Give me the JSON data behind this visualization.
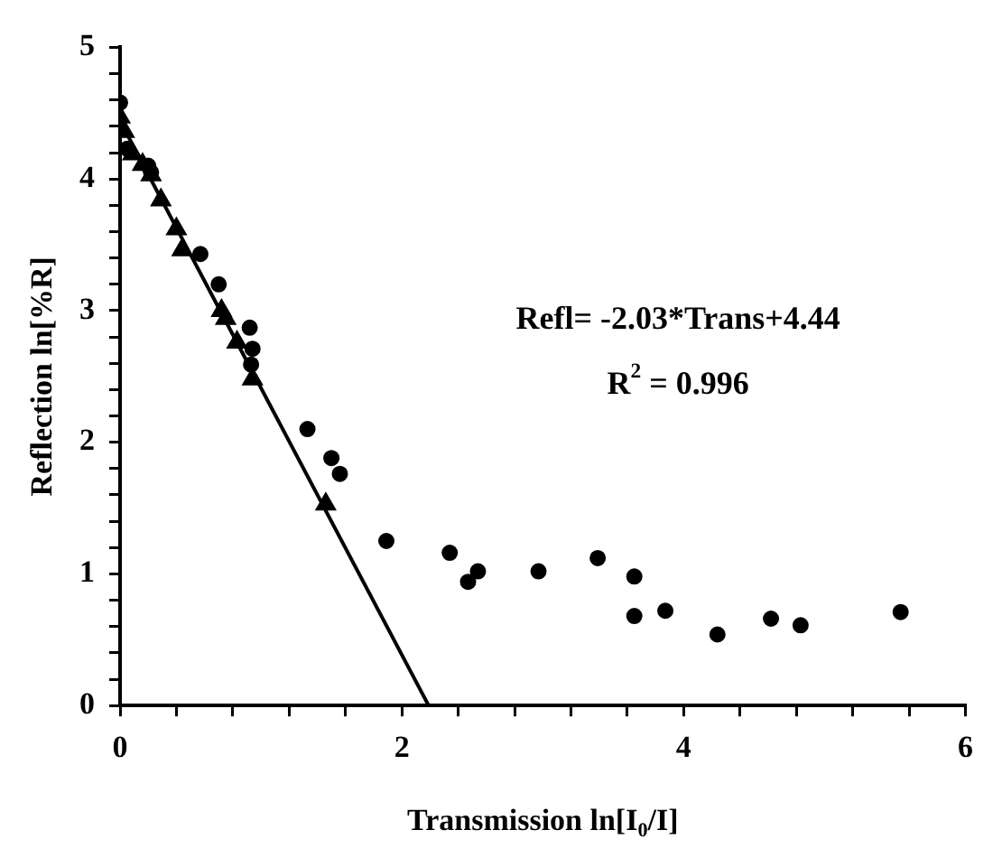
{
  "chart_data": {
    "type": "scatter",
    "xlabel": "Transmission ln[I$_{0}$/I]",
    "ylabel": "Reflection ln[%R]",
    "xlim": [
      0,
      6
    ],
    "ylim": [
      0,
      5
    ],
    "xticks": [
      0,
      {
        "value": 0.4,
        "label": null
      },
      {
        "value": 0.8,
        "label": null
      },
      {
        "value": 1.2,
        "label": null
      },
      {
        "value": 1.6,
        "label": null
      },
      2,
      {
        "value": 2.4,
        "label": null
      },
      {
        "value": 2.8,
        "label": null
      },
      {
        "value": 3.2,
        "label": null
      },
      {
        "value": 3.6,
        "label": null
      },
      4,
      {
        "value": 4.4,
        "label": null
      },
      {
        "value": 4.8,
        "label": null
      },
      {
        "value": 5.2,
        "label": null
      },
      {
        "value": 5.6,
        "label": null
      },
      6
    ],
    "yticks": [
      0,
      {
        "value": 0.2,
        "label": null
      },
      {
        "value": 0.4,
        "label": null
      },
      {
        "value": 0.6,
        "label": null
      },
      {
        "value": 0.8,
        "label": null
      },
      1,
      {
        "value": 1.2,
        "label": null
      },
      {
        "value": 1.4,
        "label": null
      },
      {
        "value": 1.6,
        "label": null
      },
      {
        "value": 1.8,
        "label": null
      },
      2,
      {
        "value": 2.2,
        "label": null
      },
      {
        "value": 2.4,
        "label": null
      },
      {
        "value": 2.6,
        "label": null
      },
      {
        "value": 2.8,
        "label": null
      },
      3,
      {
        "value": 3.2,
        "label": null
      },
      {
        "value": 3.4,
        "label": null
      },
      {
        "value": 3.6,
        "label": null
      },
      {
        "value": 3.8,
        "label": null
      },
      4,
      {
        "value": 4.2,
        "label": null
      },
      {
        "value": 4.4,
        "label": null
      },
      {
        "value": 4.6,
        "label": null
      },
      {
        "value": 4.8,
        "label": null
      },
      5
    ],
    "grid": false,
    "legend": false,
    "annotations": [
      "Refl= -2.03*Trans+4.44",
      "R$^{2}$ = 0.996"
    ],
    "series": [
      {
        "color": "#000000",
        "marker": "circle",
        "x": [
          0,
          0.05,
          0.2,
          0.22,
          0.57,
          0.7,
          0.92,
          0.94,
          0.93,
          1.33,
          1.5,
          1.56,
          1.89,
          2.34,
          2.47,
          2.54,
          2.97,
          3.39,
          3.65,
          3.65,
          3.87,
          4.24,
          4.62,
          4.83,
          5.54
        ],
        "values": [
          4.58,
          4.23,
          4.1,
          4.05,
          3.43,
          3.2,
          2.87,
          2.71,
          2.59,
          2.1,
          1.88,
          1.76,
          1.25,
          1.16,
          0.94,
          1.02,
          1.02,
          1.12,
          0.98,
          0.68,
          0.72,
          0.54,
          0.66,
          0.61,
          0.71
        ]
      },
      {
        "color": "#000000",
        "marker": "triangle",
        "x": [
          0,
          0.03,
          0.09,
          0.16,
          0.22,
          0.29,
          0.4,
          0.44,
          0.72,
          0.75,
          0.83,
          0.94,
          1.46
        ],
        "values": [
          4.47,
          4.36,
          4.19,
          4.11,
          4.03,
          3.84,
          3.62,
          3.46,
          3.0,
          2.94,
          2.76,
          2.48,
          1.53
        ]
      },
      {
        "type": "line",
        "color": "#000000",
        "marker": "none",
        "line_style": "solid",
        "x": [
          0,
          2.19
        ],
        "values": [
          4.44,
          0
        ]
      }
    ]
  }
}
